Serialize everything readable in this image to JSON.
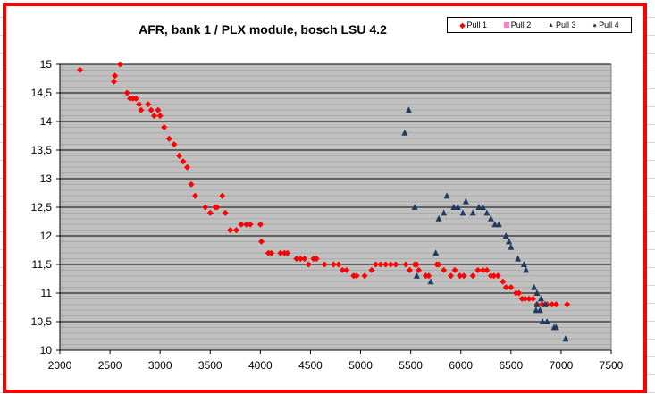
{
  "chart_data": {
    "type": "scatter",
    "title": "AFR, bank 1 / PLX module, bosch LSU 4.2",
    "xlabel": "",
    "ylabel": "",
    "xlim": [
      2000,
      7500
    ],
    "ylim": [
      10,
      15
    ],
    "xticks": [
      "2000",
      "2500",
      "3000",
      "3500",
      "4000",
      "4500",
      "5000",
      "5500",
      "6000",
      "6500",
      "7000",
      "7500"
    ],
    "yticks": [
      "10",
      "10,5",
      "11",
      "11,5",
      "12",
      "12,5",
      "13",
      "13,5",
      "14",
      "14,5",
      "15"
    ],
    "grid": true,
    "legend_position": "top-right",
    "series": [
      {
        "name": "Pull 1",
        "color": "#ff0000",
        "marker": "diamond",
        "points": [
          [
            2200,
            14.9
          ],
          [
            2540,
            14.7
          ],
          [
            2550,
            14.8
          ],
          [
            2600,
            15
          ],
          [
            2670,
            14.5
          ],
          [
            2700,
            14.4
          ],
          [
            2730,
            14.4
          ],
          [
            2760,
            14.4
          ],
          [
            2790,
            14.3
          ],
          [
            2810,
            14.2
          ],
          [
            2880,
            14.3
          ],
          [
            2910,
            14.2
          ],
          [
            2940,
            14.1
          ],
          [
            2980,
            14.2
          ],
          [
            3000,
            14.1
          ],
          [
            3040,
            13.9
          ],
          [
            3090,
            13.7
          ],
          [
            3140,
            13.6
          ],
          [
            3190,
            13.4
          ],
          [
            3230,
            13.3
          ],
          [
            3270,
            13.2
          ],
          [
            3310,
            12.9
          ],
          [
            3350,
            12.7
          ],
          [
            3450,
            12.5
          ],
          [
            3500,
            12.4
          ],
          [
            3550,
            12.5
          ],
          [
            3570,
            12.5
          ],
          [
            3620,
            12.7
          ],
          [
            3650,
            12.4
          ],
          [
            3700,
            12.1
          ],
          [
            3760,
            12.1
          ],
          [
            3810,
            12.2
          ],
          [
            3860,
            12.2
          ],
          [
            3900,
            12.2
          ],
          [
            4000,
            12.2
          ],
          [
            4010,
            11.9
          ],
          [
            4080,
            11.7
          ],
          [
            4110,
            11.7
          ],
          [
            4200,
            11.7
          ],
          [
            4240,
            11.7
          ],
          [
            4270,
            11.7
          ],
          [
            4360,
            11.6
          ],
          [
            4400,
            11.6
          ],
          [
            4440,
            11.6
          ],
          [
            4480,
            11.5
          ],
          [
            4530,
            11.6
          ],
          [
            4560,
            11.6
          ],
          [
            4640,
            11.5
          ],
          [
            4730,
            11.5
          ],
          [
            4780,
            11.5
          ],
          [
            4820,
            11.4
          ],
          [
            4860,
            11.4
          ],
          [
            4930,
            11.3
          ],
          [
            4960,
            11.3
          ],
          [
            5040,
            11.3
          ],
          [
            5110,
            11.4
          ],
          [
            5150,
            11.5
          ],
          [
            5200,
            11.5
          ],
          [
            5250,
            11.5
          ],
          [
            5300,
            11.5
          ],
          [
            5350,
            11.5
          ],
          [
            5450,
            11.5
          ],
          [
            5490,
            11.4
          ],
          [
            5540,
            11.5
          ],
          [
            5560,
            11.5
          ],
          [
            5580,
            11.4
          ],
          [
            5650,
            11.3
          ],
          [
            5680,
            11.3
          ],
          [
            5760,
            11.5
          ],
          [
            5780,
            11.5
          ],
          [
            5830,
            11.4
          ],
          [
            5900,
            11.3
          ],
          [
            5940,
            11.4
          ],
          [
            5990,
            11.3
          ],
          [
            6030,
            11.3
          ],
          [
            6120,
            11.3
          ],
          [
            6170,
            11.4
          ],
          [
            6220,
            11.4
          ],
          [
            6260,
            11.4
          ],
          [
            6300,
            11.3
          ],
          [
            6330,
            11.3
          ],
          [
            6370,
            11.3
          ],
          [
            6420,
            11.2
          ],
          [
            6450,
            11.1
          ],
          [
            6500,
            11.1
          ],
          [
            6550,
            11.0
          ],
          [
            6580,
            11.0
          ],
          [
            6610,
            10.9
          ],
          [
            6640,
            10.9
          ],
          [
            6680,
            10.9
          ],
          [
            6720,
            10.9
          ],
          [
            6760,
            10.8
          ],
          [
            6810,
            10.8
          ],
          [
            6860,
            10.8
          ],
          [
            6910,
            10.8
          ],
          [
            6950,
            10.8
          ],
          [
            7060,
            10.8
          ]
        ]
      },
      {
        "name": "Pull 2",
        "color": "#ff80c0",
        "marker": "square",
        "points": []
      },
      {
        "name": "Pull 3",
        "color": "#1f3a5f",
        "marker": "triangle",
        "points": [
          [
            5440,
            13.8
          ],
          [
            5480,
            14.2
          ],
          [
            5540,
            12.5
          ],
          [
            5560,
            11.3
          ],
          [
            5700,
            11.2
          ],
          [
            5750,
            11.7
          ],
          [
            5780,
            12.3
          ],
          [
            5830,
            12.4
          ],
          [
            5860,
            12.7
          ],
          [
            5930,
            12.5
          ],
          [
            5970,
            12.5
          ],
          [
            6020,
            12.4
          ],
          [
            6050,
            12.6
          ],
          [
            6120,
            12.4
          ],
          [
            6180,
            12.5
          ],
          [
            6220,
            12.5
          ],
          [
            6260,
            12.4
          ],
          [
            6300,
            12.3
          ],
          [
            6340,
            12.2
          ],
          [
            6380,
            12.2
          ],
          [
            6450,
            12.0
          ],
          [
            6480,
            11.9
          ],
          [
            6500,
            11.8
          ],
          [
            6570,
            11.6
          ],
          [
            6630,
            11.5
          ],
          [
            6650,
            11.4
          ],
          [
            6730,
            11.1
          ],
          [
            6760,
            11.0
          ],
          [
            6800,
            10.9
          ],
          [
            6840,
            10.8
          ],
          [
            6760,
            10.8
          ],
          [
            6750,
            10.7
          ],
          [
            6790,
            10.7
          ],
          [
            6815,
            10.5
          ],
          [
            6860,
            10.5
          ],
          [
            6930,
            10.4
          ],
          [
            6950,
            10.4
          ],
          [
            7045,
            10.2
          ]
        ]
      },
      {
        "name": "Pull 4",
        "color": "#2f4f7f",
        "marker": "circle",
        "points": []
      }
    ]
  }
}
